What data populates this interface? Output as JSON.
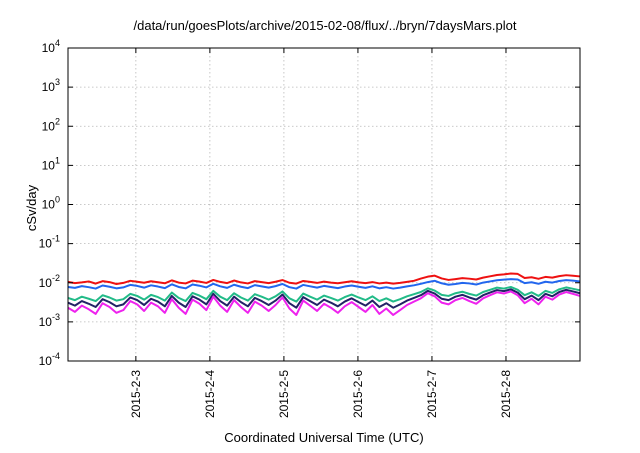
{
  "chart_data": {
    "type": "line",
    "title": "/data/run/goesPlots/archive/2015-02-08/flux/../bryn/7daysMars.plot",
    "xlabel": "Coordinated Universal Time (UTC)",
    "ylabel": "cSv/day",
    "y_scale": "log",
    "ylim": [
      0.0001,
      10000
    ],
    "y_ticks": [
      {
        "base": "10",
        "exp": "4",
        "value": 10000
      },
      {
        "base": "10",
        "exp": "3",
        "value": 1000
      },
      {
        "base": "10",
        "exp": "2",
        "value": 100
      },
      {
        "base": "10",
        "exp": "1",
        "value": 10
      },
      {
        "base": "10",
        "exp": "0",
        "value": 1
      },
      {
        "base": "10",
        "exp": "-1",
        "value": 0.1
      },
      {
        "base": "10",
        "exp": "-2",
        "value": 0.01
      },
      {
        "base": "10",
        "exp": "-3",
        "value": 0.001
      },
      {
        "base": "10",
        "exp": "-4",
        "value": 0.0001
      }
    ],
    "xlim": [
      "2015-02-02T02:00",
      "2015-02-09T00:00"
    ],
    "x_ticks": [
      "2015-2-3",
      "2015-2-4",
      "2015-2-5",
      "2015-2-6",
      "2015-2-7",
      "2015-2-8"
    ],
    "grid": true,
    "legend": "none",
    "series": [
      {
        "color": "#ee1111",
        "values": [
          0.0105,
          0.0098,
          0.0102,
          0.0108,
          0.0095,
          0.011,
          0.0104,
          0.0093,
          0.0099,
          0.0112,
          0.0106,
          0.01,
          0.0109,
          0.0103,
          0.0097,
          0.0115,
          0.0101,
          0.0096,
          0.0113,
          0.0107,
          0.0099,
          0.0118,
          0.0105,
          0.0098,
          0.0114,
          0.0102,
          0.0096,
          0.011,
          0.0104,
          0.0098,
          0.0106,
          0.0117,
          0.01,
          0.0095,
          0.0111,
          0.0105,
          0.0099,
          0.0107,
          0.0101,
          0.0097,
          0.0103,
          0.0109,
          0.0102,
          0.0098,
          0.0104,
          0.0096,
          0.0101,
          0.0095,
          0.0099,
          0.0105,
          0.0112,
          0.0128,
          0.0143,
          0.0152,
          0.0129,
          0.0118,
          0.0124,
          0.0131,
          0.0127,
          0.0121,
          0.0135,
          0.0146,
          0.0158,
          0.0164,
          0.0172,
          0.0168,
          0.0132,
          0.0138,
          0.0126,
          0.0141,
          0.0135,
          0.0148,
          0.0156,
          0.0151,
          0.0145
        ]
      },
      {
        "color": "#2266ee",
        "values": [
          0.0078,
          0.0074,
          0.0082,
          0.0077,
          0.0071,
          0.0085,
          0.0079,
          0.0072,
          0.0076,
          0.0088,
          0.0083,
          0.0075,
          0.0086,
          0.008,
          0.0073,
          0.0091,
          0.0078,
          0.0072,
          0.009,
          0.0084,
          0.0076,
          0.0094,
          0.0081,
          0.0074,
          0.0089,
          0.0079,
          0.0073,
          0.0087,
          0.0081,
          0.0075,
          0.0082,
          0.0093,
          0.0077,
          0.0071,
          0.0088,
          0.0081,
          0.0075,
          0.0083,
          0.0078,
          0.0073,
          0.008,
          0.0085,
          0.0079,
          0.0074,
          0.0081,
          0.0072,
          0.0077,
          0.0071,
          0.0075,
          0.0081,
          0.0086,
          0.0094,
          0.0104,
          0.0112,
          0.0097,
          0.0089,
          0.0093,
          0.0099,
          0.0096,
          0.009,
          0.0101,
          0.0108,
          0.0116,
          0.012,
          0.0124,
          0.0121,
          0.0098,
          0.0103,
          0.0094,
          0.0106,
          0.0101,
          0.0111,
          0.0117,
          0.0113,
          0.0108
        ]
      },
      {
        "color": "#22bb88",
        "values": [
          0.0041,
          0.0036,
          0.0044,
          0.0039,
          0.0034,
          0.0048,
          0.0042,
          0.0035,
          0.0038,
          0.0052,
          0.0046,
          0.0037,
          0.0049,
          0.0043,
          0.0035,
          0.0056,
          0.0041,
          0.0034,
          0.0055,
          0.0047,
          0.0038,
          0.0062,
          0.0044,
          0.0036,
          0.0054,
          0.0042,
          0.0035,
          0.0051,
          0.0044,
          0.0037,
          0.0045,
          0.006,
          0.004,
          0.0033,
          0.0053,
          0.0044,
          0.0037,
          0.0047,
          0.0041,
          0.0035,
          0.0043,
          0.005,
          0.0042,
          0.0036,
          0.0045,
          0.0034,
          0.004,
          0.0033,
          0.0038,
          0.0045,
          0.0051,
          0.0058,
          0.0072,
          0.0063,
          0.0049,
          0.0046,
          0.0054,
          0.0059,
          0.0052,
          0.0047,
          0.0058,
          0.0066,
          0.0075,
          0.0071,
          0.0078,
          0.0066,
          0.0048,
          0.0057,
          0.0046,
          0.0062,
          0.0055,
          0.0068,
          0.0076,
          0.007,
          0.0064
        ]
      },
      {
        "color": "#222266",
        "values": [
          0.0031,
          0.0026,
          0.0034,
          0.0029,
          0.0024,
          0.0038,
          0.0032,
          0.0025,
          0.0028,
          0.0042,
          0.0036,
          0.0027,
          0.0039,
          0.0033,
          0.0025,
          0.0046,
          0.0031,
          0.0024,
          0.0045,
          0.0037,
          0.0028,
          0.0052,
          0.0034,
          0.0026,
          0.0044,
          0.0032,
          0.0025,
          0.0041,
          0.0034,
          0.0027,
          0.0035,
          0.005,
          0.003,
          0.0023,
          0.0043,
          0.0034,
          0.0027,
          0.0037,
          0.0031,
          0.0025,
          0.0033,
          0.004,
          0.0032,
          0.0026,
          0.0035,
          0.0024,
          0.003,
          0.0023,
          0.0028,
          0.0035,
          0.0041,
          0.0048,
          0.0062,
          0.0053,
          0.0039,
          0.0036,
          0.0044,
          0.0049,
          0.0042,
          0.0037,
          0.0048,
          0.0056,
          0.0065,
          0.0061,
          0.0068,
          0.0056,
          0.0038,
          0.0047,
          0.0036,
          0.0052,
          0.0045,
          0.0058,
          0.0066,
          0.006,
          0.0054
        ]
      },
      {
        "color": "#ee22ee",
        "values": [
          0.0023,
          0.0018,
          0.0026,
          0.0021,
          0.0016,
          0.003,
          0.0024,
          0.0017,
          0.002,
          0.0034,
          0.0028,
          0.0019,
          0.0031,
          0.0025,
          0.0017,
          0.0038,
          0.0023,
          0.0016,
          0.0037,
          0.0029,
          0.002,
          0.0044,
          0.0026,
          0.0018,
          0.0036,
          0.0024,
          0.0017,
          0.0033,
          0.0026,
          0.0019,
          0.0027,
          0.0042,
          0.0022,
          0.0015,
          0.0035,
          0.0026,
          0.0019,
          0.0029,
          0.0023,
          0.0017,
          0.0025,
          0.0032,
          0.0024,
          0.0018,
          0.0027,
          0.0016,
          0.0022,
          0.0015,
          0.002,
          0.0027,
          0.0033,
          0.004,
          0.0054,
          0.0045,
          0.0031,
          0.0028,
          0.0036,
          0.0041,
          0.0034,
          0.0029,
          0.004,
          0.0048,
          0.0057,
          0.0053,
          0.006,
          0.0048,
          0.003,
          0.0039,
          0.0028,
          0.0044,
          0.0037,
          0.005,
          0.0058,
          0.0052,
          0.0046
        ]
      }
    ]
  }
}
